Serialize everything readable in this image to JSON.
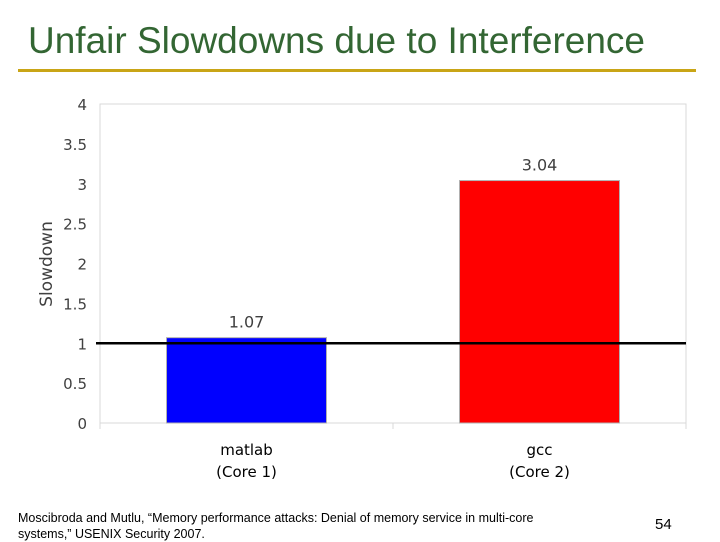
{
  "slide": {
    "title": "Unfair Slowdowns due to Interference",
    "citation": "Moscibroda and Mutlu, “Memory performance attacks: Denial of memory service in multi-core systems,” USENIX Security 2007.",
    "page_number": "54"
  },
  "chart_data": {
    "type": "bar",
    "categories": [
      "matlab\n(Core 1)",
      "gcc\n(Core 2)"
    ],
    "category_lines": [
      [
        "matlab",
        "(Core 1)"
      ],
      [
        "gcc",
        "(Core 2)"
      ]
    ],
    "values": [
      1.07,
      3.04
    ],
    "data_labels": [
      "1.07",
      "3.04"
    ],
    "bar_colors": [
      "#0000ff",
      "#ff0000"
    ],
    "ylabel": "Slowdown",
    "ylim": [
      0,
      4
    ],
    "yticks": [
      0,
      0.5,
      1,
      1.5,
      2,
      2.5,
      3,
      3.5,
      4
    ],
    "ytick_labels": [
      "0",
      "0.5",
      "1",
      "1.5",
      "2",
      "2.5",
      "3",
      "3.5",
      "4"
    ],
    "reference_line": 1,
    "grid": false
  }
}
